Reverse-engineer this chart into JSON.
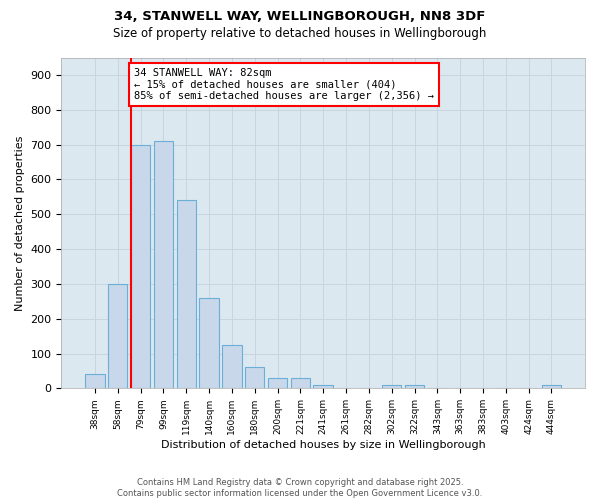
{
  "title1": "34, STANWELL WAY, WELLINGBOROUGH, NN8 3DF",
  "title2": "Size of property relative to detached houses in Wellingborough",
  "xlabel": "Distribution of detached houses by size in Wellingborough",
  "ylabel": "Number of detached properties",
  "categories": [
    "38sqm",
    "58sqm",
    "79sqm",
    "99sqm",
    "119sqm",
    "140sqm",
    "160sqm",
    "180sqm",
    "200sqm",
    "221sqm",
    "241sqm",
    "261sqm",
    "282sqm",
    "302sqm",
    "322sqm",
    "343sqm",
    "363sqm",
    "383sqm",
    "403sqm",
    "424sqm",
    "444sqm"
  ],
  "values": [
    40,
    300,
    700,
    710,
    540,
    260,
    125,
    60,
    30,
    30,
    10,
    0,
    0,
    10,
    10,
    0,
    0,
    0,
    0,
    0,
    10
  ],
  "bar_color": "#c8d8ea",
  "bar_edge_color": "#6baed6",
  "red_line_x": 1.6,
  "annotation_text": "34 STANWELL WAY: 82sqm\n← 15% of detached houses are smaller (404)\n85% of semi-detached houses are larger (2,356) →",
  "annotation_box_color": "white",
  "annotation_box_edge_color": "red",
  "red_line_color": "red",
  "grid_color": "#c8d4e0",
  "background_color": "#dce8f0",
  "footer_text": "Contains HM Land Registry data © Crown copyright and database right 2025.\nContains public sector information licensed under the Open Government Licence v3.0.",
  "ylim": [
    0,
    950
  ],
  "yticks": [
    0,
    100,
    200,
    300,
    400,
    500,
    600,
    700,
    800,
    900
  ],
  "fig_width": 6.0,
  "fig_height": 5.0,
  "fig_dpi": 100
}
